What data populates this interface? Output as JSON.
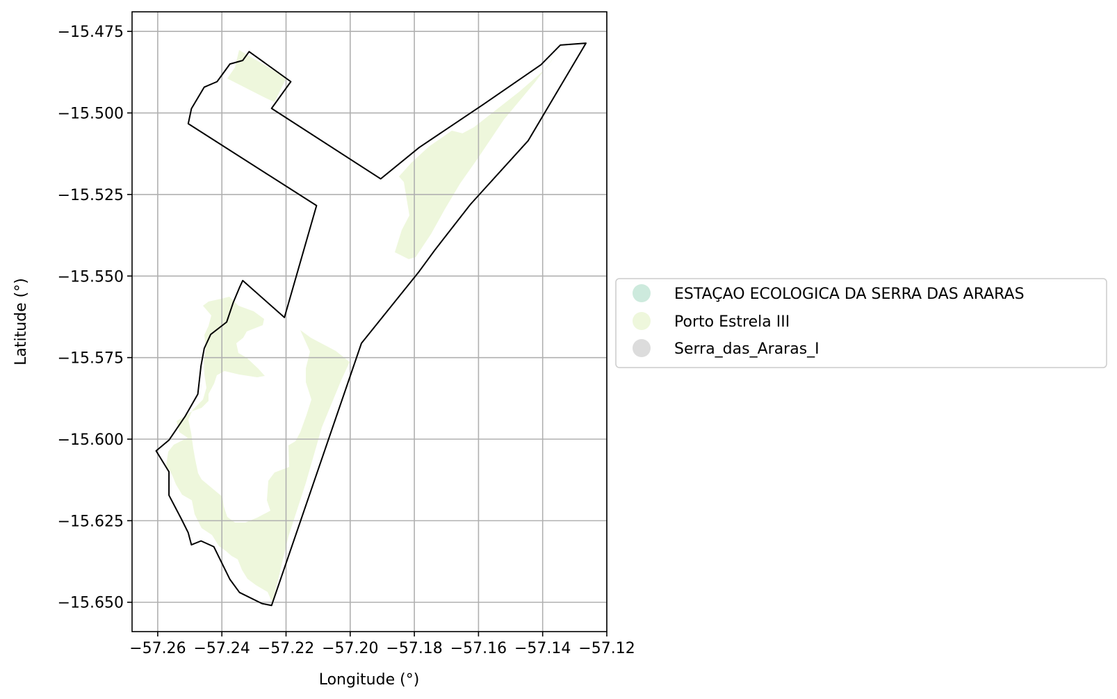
{
  "chart_data": {
    "type": "map",
    "xlabel": "Longitude (°)",
    "ylabel": "Latitude (°)",
    "xlim": [
      -57.268,
      -57.12
    ],
    "ylim": [
      -15.659,
      -15.469
    ],
    "x_ticks": [
      -57.26,
      -57.24,
      -57.22,
      -57.2,
      -57.18,
      -57.16,
      -57.14,
      -57.12
    ],
    "x_tick_labels": [
      "−57.26",
      "−57.24",
      "−57.22",
      "−57.20",
      "−57.18",
      "−57.16",
      "−57.14",
      "−57.12"
    ],
    "y_ticks": [
      -15.475,
      -15.5,
      -15.525,
      -15.55,
      -15.575,
      -15.6,
      -15.625,
      -15.65
    ],
    "y_tick_labels": [
      "−15.475",
      "−15.500",
      "−15.525",
      "−15.550",
      "−15.575",
      "−15.600",
      "−15.625",
      "−15.650"
    ],
    "grid": true,
    "legend_position": "center-right outside axes",
    "legend": [
      {
        "label": "ESTAÇAO ECOLOGICA DA SERRA DAS ARARAS",
        "color": "#cdeadd"
      },
      {
        "label": "Porto Estrela III",
        "color": "#eef7dc"
      },
      {
        "label": "Serra_das_Araras_I",
        "color": "#dcdcdc"
      }
    ],
    "fill_color": "#eef7dc",
    "outline_color": "#000000",
    "boundary": [
      [
        -57.2315,
        -15.4812
      ],
      [
        -57.2185,
        -15.4904
      ],
      [
        -57.2245,
        -15.4986
      ],
      [
        -57.1905,
        -15.5202
      ],
      [
        -57.1785,
        -15.5106
      ],
      [
        -57.1585,
        -15.4974
      ],
      [
        -57.1405,
        -15.4852
      ],
      [
        -57.1345,
        -15.4792
      ],
      [
        -57.1265,
        -15.4786
      ],
      [
        -57.1445,
        -15.5085
      ],
      [
        -57.1625,
        -15.528
      ],
      [
        -57.1735,
        -15.5419
      ],
      [
        -57.1785,
        -15.5486
      ],
      [
        -57.1965,
        -15.5706
      ],
      [
        -57.2245,
        -15.651
      ],
      [
        -57.2275,
        -15.6504
      ],
      [
        -57.2345,
        -15.647
      ],
      [
        -57.2375,
        -15.643
      ],
      [
        -57.2405,
        -15.637
      ],
      [
        -57.2425,
        -15.633
      ],
      [
        -57.2465,
        -15.6312
      ],
      [
        -57.2495,
        -15.6324
      ],
      [
        -57.2505,
        -15.6287
      ],
      [
        -57.2525,
        -15.6247
      ],
      [
        -57.2565,
        -15.6172
      ],
      [
        -57.2565,
        -15.61
      ],
      [
        -57.2605,
        -15.6036
      ],
      [
        -57.2565,
        -15.6003
      ],
      [
        -57.2515,
        -15.5931
      ],
      [
        -57.2475,
        -15.5862
      ],
      [
        -57.2465,
        -15.5775
      ],
      [
        -57.2455,
        -15.5722
      ],
      [
        -57.2435,
        -15.5679
      ],
      [
        -57.2385,
        -15.5641
      ],
      [
        -57.2365,
        -15.5582
      ],
      [
        -57.2345,
        -15.5535
      ],
      [
        -57.2335,
        -15.5514
      ],
      [
        -57.2205,
        -15.5627
      ],
      [
        -57.2105,
        -15.5284
      ],
      [
        -57.2505,
        -15.5033
      ],
      [
        -57.2495,
        -15.4987
      ],
      [
        -57.2455,
        -15.4921
      ],
      [
        -57.2415,
        -15.4904
      ],
      [
        -57.2375,
        -15.485
      ],
      [
        -57.2335,
        -15.4839
      ],
      [
        -57.2315,
        -15.4812
      ]
    ],
    "regions": [
      {
        "name": "Porto Estrela III",
        "note": "fill patches inside boundary"
      }
    ]
  }
}
